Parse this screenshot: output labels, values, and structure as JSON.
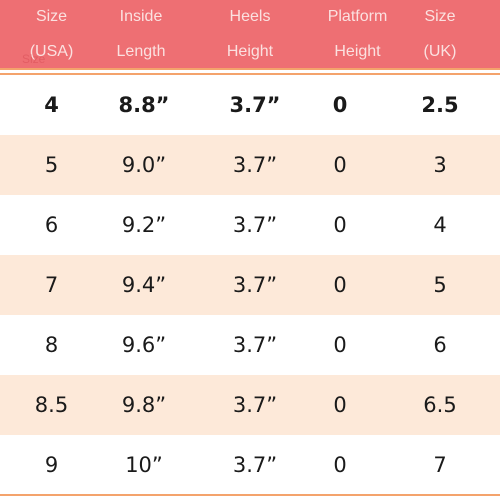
{
  "header": {
    "columns": [
      {
        "line1": "Size",
        "line2": "(USA)"
      },
      {
        "line1": "Inside",
        "line2": "Length"
      },
      {
        "line1": "Heels",
        "line2": "Height"
      },
      {
        "line1": "Platform",
        "line2": "Height"
      },
      {
        "line1": "Size",
        "line2": "(UK)"
      }
    ],
    "ghost_text": "Size"
  },
  "rows": [
    {
      "usa": "4",
      "length": "8.8”",
      "heel": "3.7”",
      "platform": "0",
      "uk": "2.5"
    },
    {
      "usa": "5",
      "length": "9.0”",
      "heel": "3.7”",
      "platform": "0",
      "uk": "3"
    },
    {
      "usa": "6",
      "length": "9.2”",
      "heel": "3.7”",
      "platform": "0",
      "uk": "4"
    },
    {
      "usa": "7",
      "length": "9.4”",
      "heel": "3.7”",
      "platform": "0",
      "uk": "5"
    },
    {
      "usa": "8",
      "length": "9.6”",
      "heel": "3.7”",
      "platform": "0",
      "uk": "6"
    },
    {
      "usa": "8.5",
      "length": "9.8”",
      "heel": "3.7”",
      "platform": "0",
      "uk": "6.5"
    },
    {
      "usa": "9",
      "length": "10”",
      "heel": "3.7”",
      "platform": "0",
      "uk": "7"
    }
  ],
  "colors": {
    "header_bg": "#ee6f73",
    "header_text": "#fbe1e0",
    "row_shade": "#fde9d9",
    "rule": "#f4a36c"
  }
}
